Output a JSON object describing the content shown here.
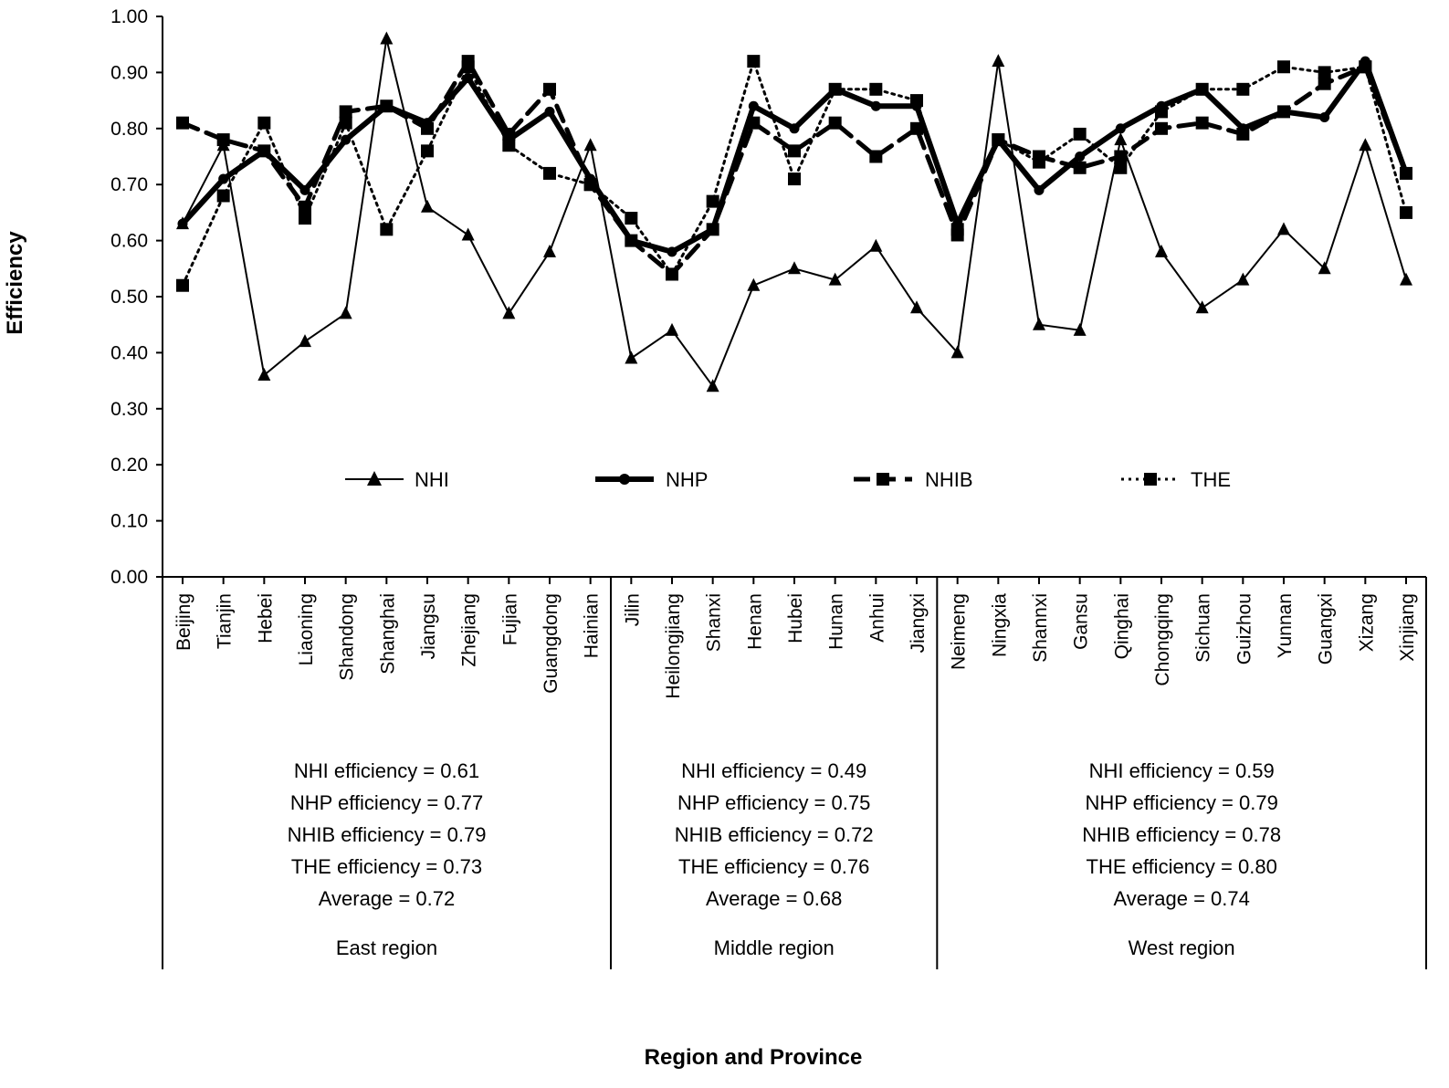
{
  "chart_data": {
    "type": "line",
    "title": "",
    "xlabel": "Region and Province",
    "ylabel": "Efficiency",
    "ylim": [
      0,
      1
    ],
    "yticks": [
      "0.00",
      "0.10",
      "0.20",
      "0.30",
      "0.40",
      "0.50",
      "0.60",
      "0.70",
      "0.80",
      "0.90",
      "1.00"
    ],
    "grid": false,
    "legend_position": "center",
    "categories": [
      "Beijing",
      "Tianjin",
      "Hebei",
      "Liaoning",
      "Shandong",
      "Shanghai",
      "Jiangsu",
      "Zhejiang",
      "Fujian",
      "Guangdong",
      "Hainian",
      "Jilin",
      "Heilongjiang",
      "Shanxi",
      "Henan",
      "Hubei",
      "Hunan",
      "Anhui",
      "Jiangxi",
      "Neimeng",
      "Ningxia",
      "Shannxi",
      "Gansu",
      "Qinghai",
      "Chongqing",
      "Sichuan",
      "Guizhou",
      "Yunnan",
      "Guangxi",
      "Xizang",
      "Xinjiang"
    ],
    "series": [
      {
        "name": "NHI",
        "style": "solid-thin",
        "marker": "triangle",
        "color": "#000000",
        "values": [
          0.63,
          0.77,
          0.36,
          0.42,
          0.47,
          0.96,
          0.66,
          0.61,
          0.47,
          0.58,
          0.77,
          0.39,
          0.44,
          0.34,
          0.52,
          0.55,
          0.53,
          0.59,
          0.48,
          0.4,
          0.92,
          0.45,
          0.44,
          0.78,
          0.58,
          0.48,
          0.53,
          0.62,
          0.55,
          0.77,
          0.53
        ]
      },
      {
        "name": "NHP",
        "style": "solid-thick",
        "marker": "circle",
        "color": "#000000",
        "values": [
          0.63,
          0.71,
          0.76,
          0.69,
          0.78,
          0.84,
          0.81,
          0.89,
          0.78,
          0.83,
          0.71,
          0.6,
          0.58,
          0.62,
          0.84,
          0.8,
          0.87,
          0.84,
          0.84,
          0.63,
          0.78,
          0.69,
          0.75,
          0.8,
          0.84,
          0.87,
          0.8,
          0.83,
          0.82,
          0.92,
          0.72
        ]
      },
      {
        "name": "NHIB",
        "style": "dashed",
        "marker": "square",
        "color": "#000000",
        "values": [
          0.81,
          0.78,
          0.76,
          0.66,
          0.83,
          0.84,
          0.8,
          0.92,
          0.79,
          0.87,
          0.7,
          0.6,
          0.54,
          0.62,
          0.81,
          0.76,
          0.81,
          0.75,
          0.8,
          0.61,
          0.78,
          0.75,
          0.73,
          0.75,
          0.8,
          0.81,
          0.79,
          0.83,
          0.88,
          0.91,
          0.72
        ]
      },
      {
        "name": "THE",
        "style": "dotted",
        "marker": "square",
        "color": "#000000",
        "values": [
          0.52,
          0.68,
          0.81,
          0.64,
          0.81,
          0.62,
          0.76,
          0.91,
          0.77,
          0.72,
          0.7,
          0.64,
          0.54,
          0.67,
          0.92,
          0.71,
          0.87,
          0.87,
          0.85,
          0.62,
          0.78,
          0.74,
          0.79,
          0.73,
          0.83,
          0.87,
          0.87,
          0.91,
          0.9,
          0.91,
          0.65
        ]
      }
    ],
    "regions": [
      {
        "name": "East region",
        "start": 0,
        "end": 10,
        "stats": [
          "NHI efficiency = 0.61",
          "NHP efficiency = 0.77",
          "NHIB efficiency = 0.79",
          "THE efficiency = 0.73",
          "Average = 0.72"
        ]
      },
      {
        "name": "Middle region",
        "start": 11,
        "end": 18,
        "stats": [
          "NHI efficiency = 0.49",
          "NHP efficiency = 0.75",
          "NHIB efficiency = 0.72",
          "THE efficiency = 0.76",
          "Average = 0.68"
        ]
      },
      {
        "name": "West region",
        "start": 19,
        "end": 30,
        "stats": [
          "NHI efficiency = 0.59",
          "NHP efficiency = 0.79",
          "NHIB efficiency = 0.78",
          "THE efficiency = 0.80",
          "Average = 0.74"
        ]
      }
    ]
  }
}
